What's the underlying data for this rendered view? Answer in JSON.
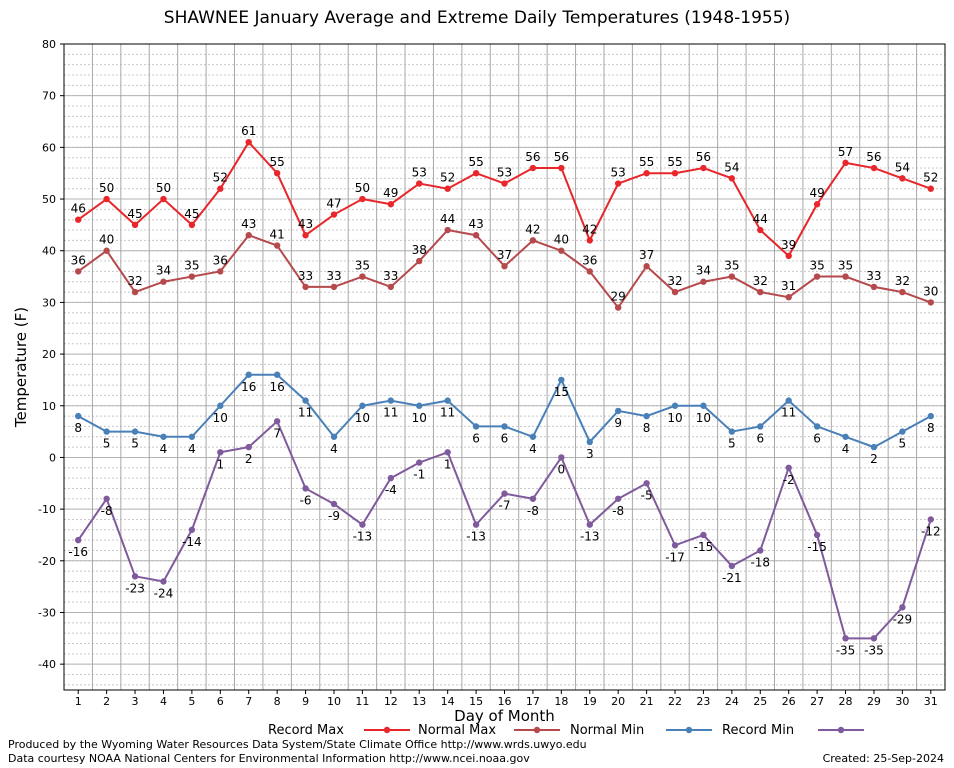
{
  "footer": {
    "produced_by": "Produced by the Wyoming Water Resources Data System/State Climate Office http://www.wrds.uwyo.edu",
    "courtesy": "Data courtesy NOAA National Centers for Environmental Information http://www.ncei.noaa.gov",
    "created": "Created:  25-Sep-2024"
  },
  "chart_data": {
    "type": "line",
    "title": "SHAWNEE January Average and Extreme Daily Temperatures (1948-1955)",
    "xlabel": "Day of Month",
    "ylabel": "Temperature (F)",
    "ylim": [
      -45,
      80
    ],
    "yticks": [
      -40,
      -30,
      -20,
      -10,
      0,
      10,
      20,
      30,
      40,
      50,
      60,
      70,
      80
    ],
    "x": [
      1,
      2,
      3,
      4,
      5,
      6,
      7,
      8,
      9,
      10,
      11,
      12,
      13,
      14,
      15,
      16,
      17,
      18,
      19,
      20,
      21,
      22,
      23,
      24,
      25,
      26,
      27,
      28,
      29,
      30,
      31
    ],
    "grid": true,
    "legend_position": "bottom",
    "series": [
      {
        "name": "Record Max",
        "color": "#e8262b",
        "values": [
          46,
          50,
          45,
          50,
          45,
          52,
          61,
          55,
          43,
          47,
          50,
          49,
          53,
          52,
          55,
          53,
          56,
          56,
          42,
          53,
          55,
          55,
          56,
          54,
          44,
          39,
          49,
          57,
          56,
          54,
          52
        ]
      },
      {
        "name": "Normal Max",
        "color": "#b5494c",
        "values": [
          36,
          40,
          32,
          34,
          35,
          36,
          43,
          41,
          33,
          33,
          35,
          33,
          38,
          44,
          43,
          37,
          42,
          40,
          36,
          29,
          37,
          32,
          34,
          35,
          32,
          31,
          35,
          35,
          33,
          32,
          30
        ]
      },
      {
        "name": "Normal Min",
        "color": "#4a80b8",
        "values": [
          8,
          5,
          5,
          4,
          4,
          10,
          16,
          16,
          11,
          4,
          10,
          11,
          10,
          11,
          6,
          6,
          4,
          15,
          3,
          9,
          8,
          10,
          10,
          5,
          6,
          11,
          6,
          4,
          2,
          5,
          8
        ]
      },
      {
        "name": "Record Min",
        "color": "#7f5a9c",
        "values": [
          -16,
          -8,
          -23,
          -24,
          -14,
          1,
          2,
          7,
          -6,
          -9,
          -13,
          -4,
          -1,
          1,
          -13,
          -7,
          -8,
          0,
          -13,
          -8,
          -5,
          -17,
          -15,
          -21,
          -18,
          -2,
          -15,
          -35,
          -35,
          -29,
          -12
        ]
      }
    ]
  }
}
